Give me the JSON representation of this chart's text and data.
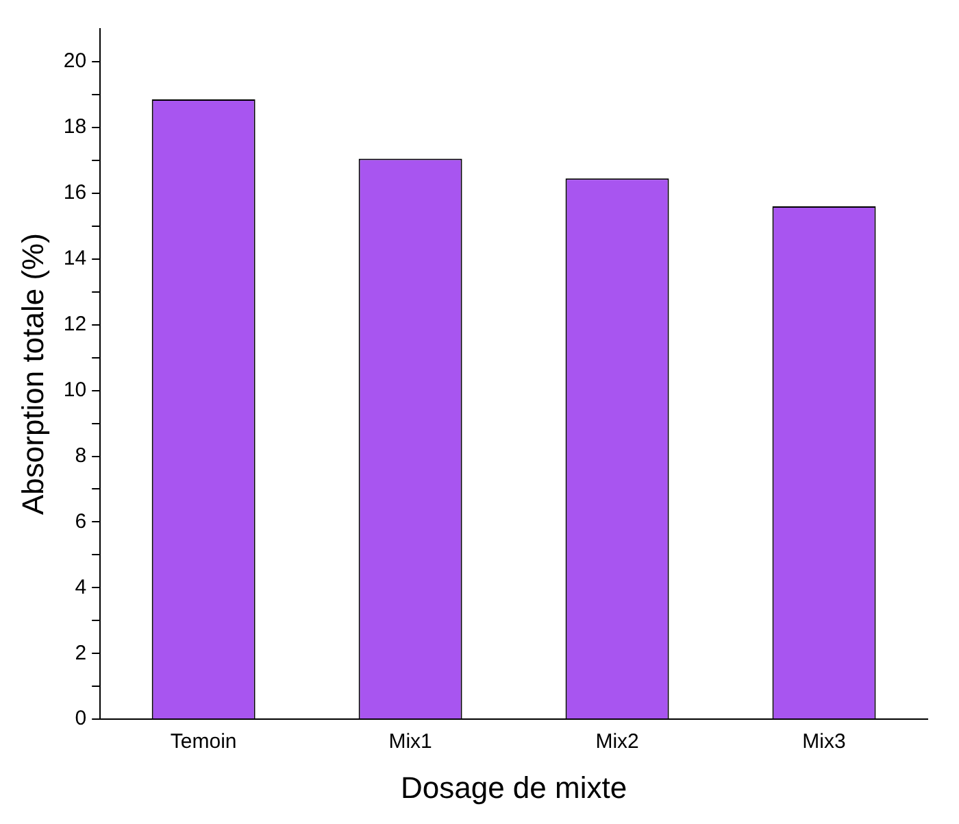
{
  "chart_data": {
    "type": "bar",
    "xlabel": "Dosage de mixte",
    "ylabel": "Absorption totale (%)",
    "categories": [
      "Temoin",
      "Mix1",
      "Mix2",
      "Mix3"
    ],
    "values": [
      18.85,
      17.05,
      16.45,
      15.6
    ],
    "color": "#a855f0",
    "ylim": [
      0,
      21
    ],
    "yticks": [
      0,
      {
        "value": 1,
        "label": null
      },
      2,
      {
        "value": 3,
        "label": null
      },
      4,
      {
        "value": 5,
        "label": null
      },
      6,
      {
        "value": 7,
        "label": null
      },
      8,
      {
        "value": 9,
        "label": null
      },
      10,
      {
        "value": 11,
        "label": null
      },
      12,
      {
        "value": 13,
        "label": null
      },
      14,
      {
        "value": 15,
        "label": null
      },
      16,
      {
        "value": 17,
        "label": null
      },
      18,
      {
        "value": 19,
        "label": null
      },
      20
    ],
    "grid": false,
    "legend": false
  }
}
